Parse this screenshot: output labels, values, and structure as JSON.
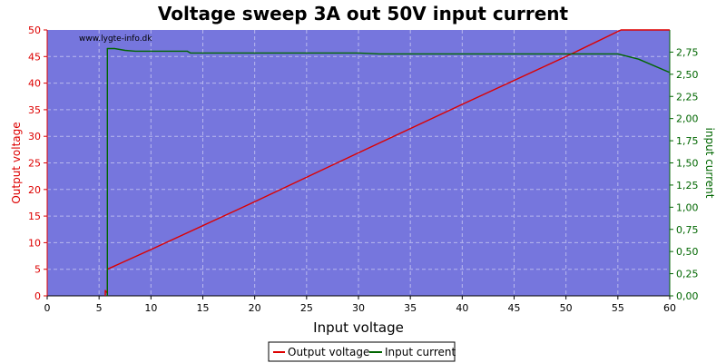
{
  "chart_data": {
    "type": "line",
    "title": "Voltage sweep 3A out 50V input current",
    "watermark": "www.lygte-info.dk",
    "xlabel": "Input voltage",
    "ylabel_left": "Output voltage",
    "ylabel_right": "input current",
    "xlim": [
      0,
      60
    ],
    "ylim_left": [
      0,
      50
    ],
    "ylim_right": [
      0,
      3.0
    ],
    "x_ticks": [
      "0",
      "5",
      "10",
      "15",
      "20",
      "25",
      "30",
      "35",
      "40",
      "45",
      "50",
      "55",
      "60"
    ],
    "y_left_ticks": [
      "0",
      "5",
      "10",
      "15",
      "20",
      "25",
      "30",
      "35",
      "40",
      "45",
      "50"
    ],
    "y_right_ticks": [
      "0,00",
      "0,25",
      "0,50",
      "0,75",
      "1,00",
      "1,25",
      "1,50",
      "1,75",
      "2,00",
      "2,25",
      "2,50",
      "2,75"
    ],
    "grid": true,
    "legend_position": "bottom-center",
    "colors": {
      "plot_bg": "#7676dd",
      "output_voltage": "#dd0000",
      "input_current": "#006600",
      "left_axis": "#dd0000",
      "right_axis": "#006600",
      "grid": "#b8b8ee"
    },
    "series": [
      {
        "name": "Output voltage",
        "axis": "left",
        "points": [
          [
            5.6,
            0
          ],
          [
            5.6,
            1
          ],
          [
            5.8,
            0.5
          ],
          [
            5.8,
            5
          ],
          [
            10,
            8.7
          ],
          [
            20,
            17.7
          ],
          [
            30,
            26.9
          ],
          [
            40,
            36.0
          ],
          [
            50,
            45.0
          ],
          [
            55.3,
            50
          ],
          [
            60,
            50
          ]
        ]
      },
      {
        "name": "Input current",
        "axis": "right",
        "points": [
          [
            5.8,
            0
          ],
          [
            5.8,
            2.79
          ],
          [
            6.5,
            2.79
          ],
          [
            7.5,
            2.77
          ],
          [
            8.5,
            2.76
          ],
          [
            10,
            2.76
          ],
          [
            13.5,
            2.76
          ],
          [
            13.8,
            2.74
          ],
          [
            20,
            2.74
          ],
          [
            30,
            2.74
          ],
          [
            32,
            2.73
          ],
          [
            40,
            2.73
          ],
          [
            50,
            2.73
          ],
          [
            55,
            2.73
          ],
          [
            57,
            2.67
          ],
          [
            60,
            2.52
          ]
        ]
      }
    ]
  }
}
